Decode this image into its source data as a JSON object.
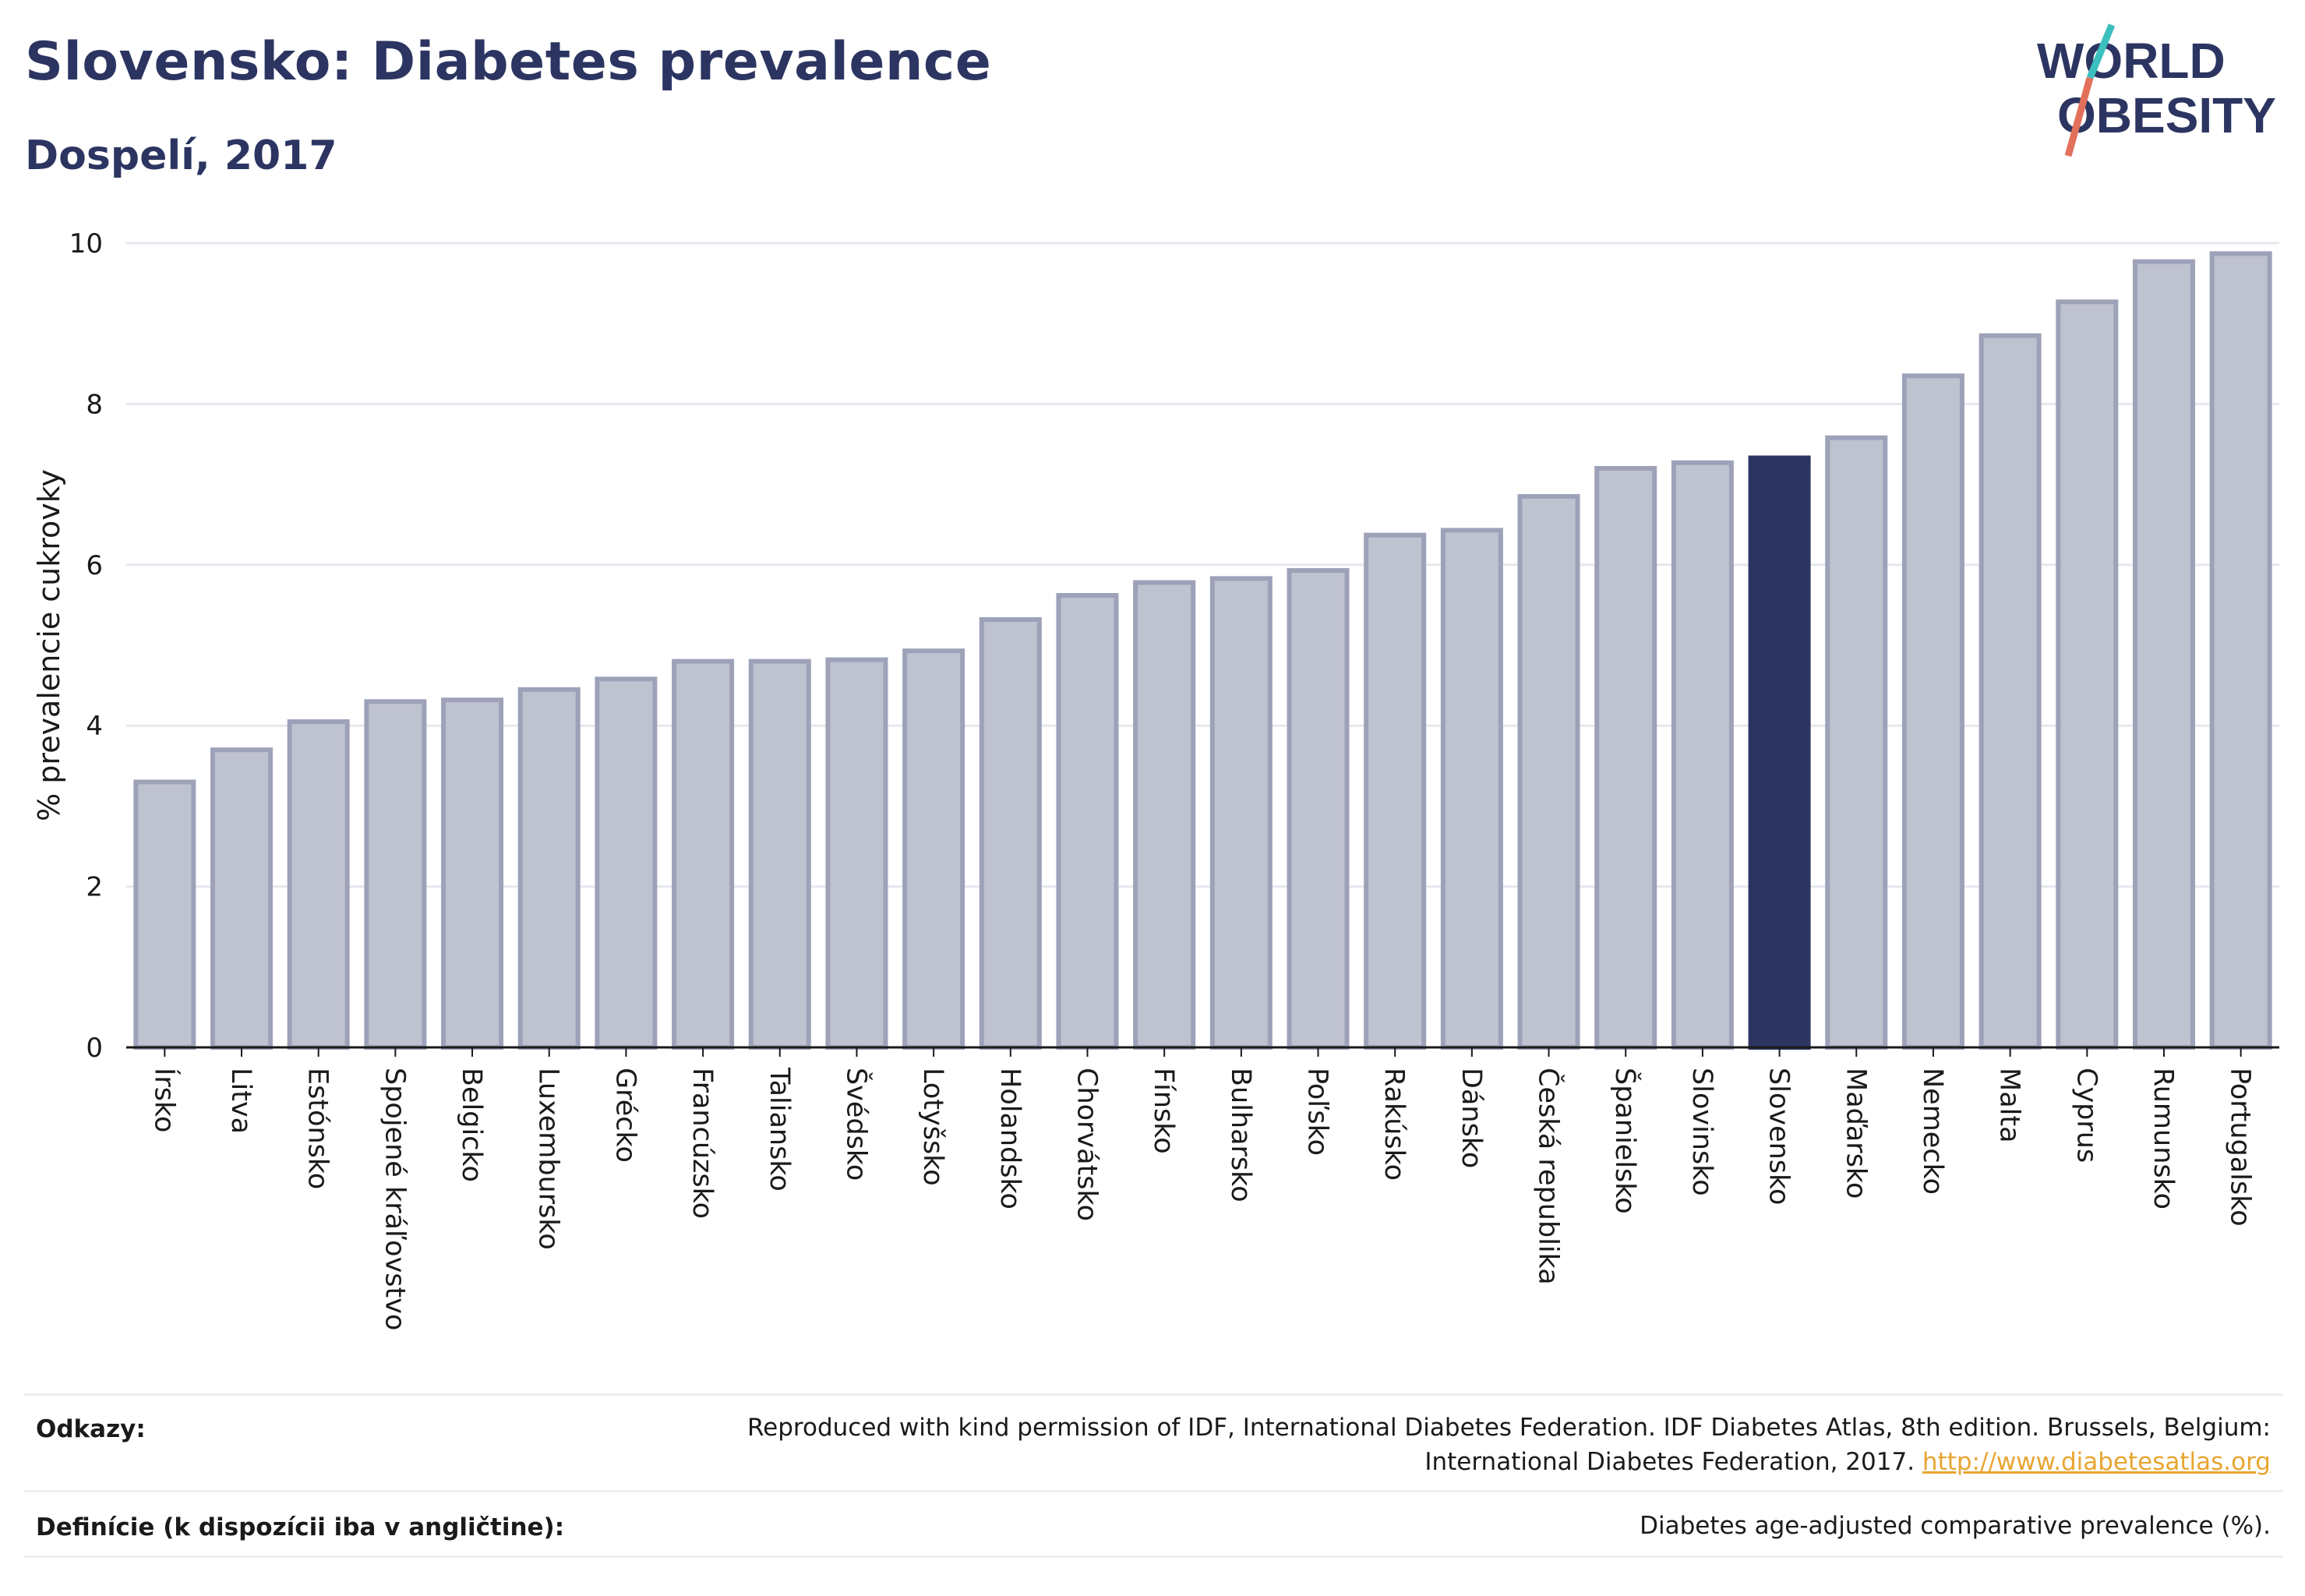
{
  "header": {
    "title": "Slovensko: Diabetes prevalence",
    "subtitle": "Dospelí, 2017"
  },
  "logo": {
    "line1": "WORLD",
    "line2": "OBESITY"
  },
  "colors": {
    "base_bar": "#bfc2cf",
    "base_bar_edge": "#9da2b9",
    "highlight_bar": "#2c3561",
    "title": "#2c3561",
    "grid": "#e6e8ee"
  },
  "chart_data": {
    "type": "bar",
    "title": "Slovensko: Diabetes prevalence",
    "subtitle": "Dospelí, 2017",
    "ylabel": "% prevalencie cukrovky",
    "xlabel": "",
    "ylim": [
      0,
      10
    ],
    "yticks": [
      0,
      2,
      4,
      6,
      8,
      10
    ],
    "grid": true,
    "highlight": "Slovensko",
    "categories": [
      "Írsko",
      "Litva",
      "Estónsko",
      "Spojené kráľovstvo",
      "Belgicko",
      "Luxembursko",
      "Grécko",
      "Francúzsko",
      "Taliansko",
      "Švédsko",
      "Lotyšsko",
      "Holandsko",
      "Chorvátsko",
      "Fínsko",
      "Bulharsko",
      "Poľsko",
      "Rakúsko",
      "Dánsko",
      "Česká republika",
      "Španielsko",
      "Slovinsko",
      "Slovensko",
      "Maďarsko",
      "Nemecko",
      "Malta",
      "Cyprus",
      "Rumunsko",
      "Portugalsko"
    ],
    "values": [
      3.3,
      3.7,
      4.05,
      4.3,
      4.32,
      4.45,
      4.58,
      4.8,
      4.8,
      4.82,
      4.93,
      5.32,
      5.62,
      5.78,
      5.83,
      5.93,
      6.37,
      6.43,
      6.85,
      7.2,
      7.27,
      7.33,
      7.58,
      8.35,
      8.85,
      9.27,
      9.77,
      9.87
    ]
  },
  "footer": {
    "references_label": "Odkazy:",
    "references_text_1": "Reproduced with kind permission of IDF, International Diabetes Federation. IDF Diabetes Atlas, 8th edition. Brussels, Belgium:",
    "references_text_2": "International Diabetes Federation, 2017.",
    "references_link": "http://www.diabetesatlas.org",
    "definitions_label": "Definície (k dispozícii iba v angličtine):",
    "definitions_text": "Diabetes age-adjusted comparative prevalence (%)."
  }
}
